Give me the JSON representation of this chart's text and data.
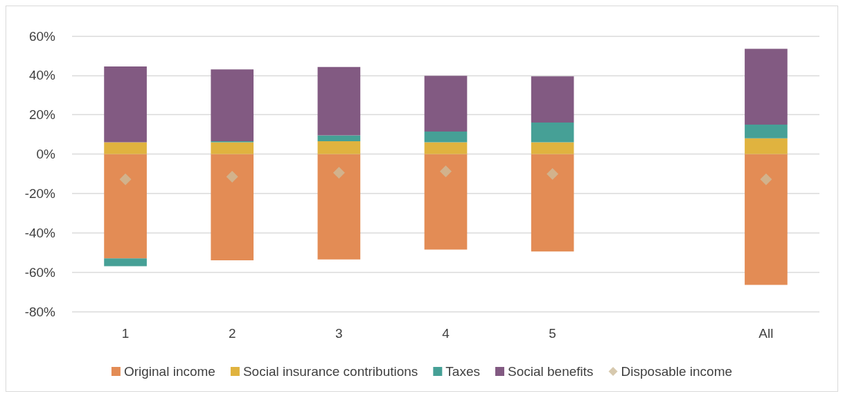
{
  "chart_data": {
    "type": "bar",
    "stacked": true,
    "categories": [
      "1",
      "2",
      "3",
      "4",
      "5",
      null,
      "All"
    ],
    "series": [
      {
        "name": "Original income",
        "color": "#e38c55",
        "values": [
          -53,
          -54,
          -53.5,
          -48.5,
          -49.5,
          null,
          -66.5
        ]
      },
      {
        "name": "Social insurance contributions",
        "color": "#e0b33f",
        "values": [
          6,
          6,
          6.5,
          6,
          6,
          null,
          8
        ]
      },
      {
        "name": "Taxes",
        "color": "#46a096",
        "values": [
          -4,
          0.5,
          3,
          5.5,
          10,
          null,
          7
        ]
      },
      {
        "name": "Social benefits",
        "color": "#825a82",
        "values": [
          38.5,
          36.5,
          34.8,
          28.3,
          23.5,
          null,
          38.5
        ]
      },
      {
        "name": "Disposable income",
        "type": "scatter",
        "marker": "diamond",
        "color": "#cdbb9a",
        "values": [
          -12.8,
          -11.5,
          -9.5,
          -8.8,
          -10.1,
          null,
          -12.8
        ]
      }
    ],
    "ylim": [
      -80,
      60
    ],
    "yticks": [
      {
        "value": -80,
        "label": "-80%"
      },
      {
        "value": -60,
        "label": "-60%"
      },
      {
        "value": -40,
        "label": "-40%"
      },
      {
        "value": -20,
        "label": "-20%"
      },
      {
        "value": 0,
        "label": "0%"
      },
      {
        "value": 20,
        "label": "20%"
      },
      {
        "value": 40,
        "label": "40%"
      },
      {
        "value": 60,
        "label": "60%"
      }
    ],
    "grid": "y",
    "legend": "bottom"
  }
}
